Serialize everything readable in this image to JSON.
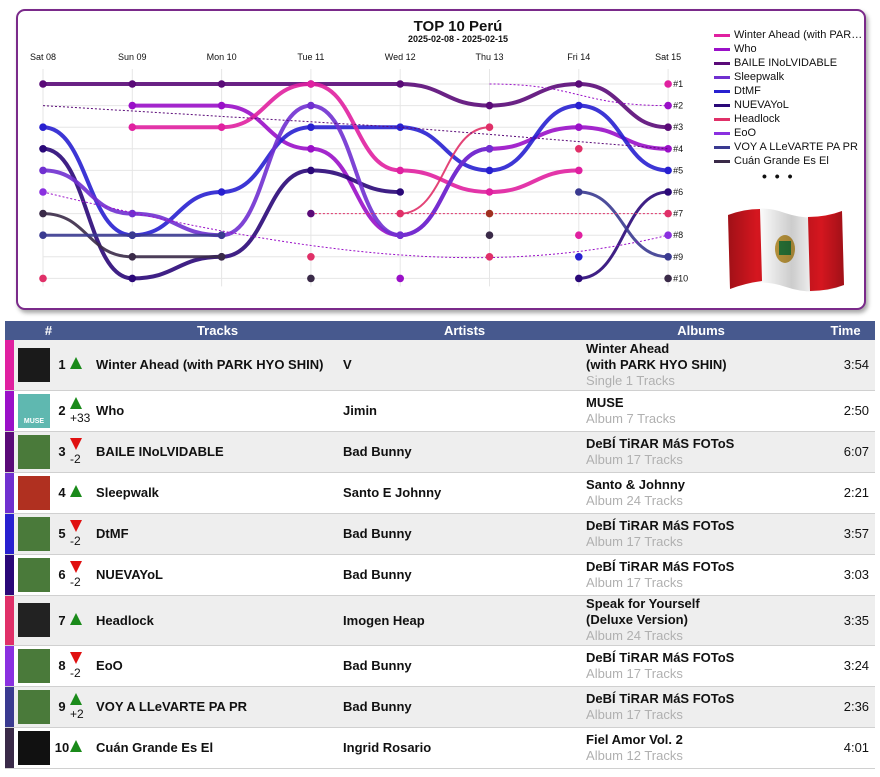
{
  "chart": {
    "title": "TOP 10 Perú",
    "date_range": "2025-02-08 - 2025-02-15",
    "days": [
      "Sat 08",
      "Sun 09",
      "Mon 10",
      "Tue 11",
      "Wed 12",
      "Thu 13",
      "Fri 14",
      "Sat 15"
    ],
    "rank_labels": [
      "#1",
      "#2",
      "#3",
      "#4",
      "#5",
      "#6",
      "#7",
      "#8",
      "#9",
      "#10"
    ],
    "legend_more": "• • •",
    "flag_name": "peru-flag"
  },
  "chart_data": {
    "type": "line",
    "x": [
      "Sat 08",
      "Sun 09",
      "Mon 10",
      "Tue 11",
      "Wed 12",
      "Thu 13",
      "Fri 14",
      "Sat 15"
    ],
    "y_axis": "rank (1 = top)",
    "series": [
      {
        "name": "Winter Ahead (with PARK HYO SHIN)",
        "color": "#e020a0",
        "ranks": [
          null,
          null,
          null,
          null,
          null,
          null,
          null,
          1
        ]
      },
      {
        "name": "Who",
        "color": "#9a10c8",
        "ranks": [
          null,
          null,
          null,
          null,
          null,
          null,
          null,
          2
        ]
      },
      {
        "name": "BAILE INoLVIDABLE",
        "color": "#5a0a78",
        "ranks": [
          1,
          1,
          1,
          1,
          1,
          1,
          1,
          3
        ]
      },
      {
        "name": "Sleepwalk",
        "color": "#7030d0",
        "ranks": [
          null,
          null,
          null,
          null,
          null,
          null,
          null,
          4
        ]
      },
      {
        "name": "DtMF",
        "color": "#2820d0",
        "ranks": [
          3,
          null,
          null,
          null,
          null,
          null,
          null,
          5
        ]
      },
      {
        "name": "NUEVAYoL",
        "color": "#2a0878",
        "ranks": [
          null,
          null,
          null,
          null,
          null,
          null,
          null,
          6
        ]
      },
      {
        "name": "Headlock",
        "color": "#e03068",
        "ranks": [
          null,
          null,
          null,
          null,
          null,
          null,
          null,
          7
        ]
      },
      {
        "name": "EoO",
        "color": "#8a30e0",
        "ranks": [
          null,
          null,
          null,
          null,
          null,
          null,
          null,
          8
        ]
      },
      {
        "name": "VOY A LLeVARTE PA PR",
        "color": "#3a3a90",
        "ranks": [
          null,
          null,
          null,
          null,
          null,
          null,
          null,
          9
        ]
      },
      {
        "name": "Cuán Grande Es El",
        "color": "#3a2a48",
        "ranks": [
          null,
          null,
          null,
          null,
          null,
          null,
          null,
          10
        ]
      }
    ]
  },
  "table": {
    "headers": {
      "rank": "#",
      "tracks": "Tracks",
      "artists": "Artists",
      "albums": "Albums",
      "time": "Time"
    },
    "rows": [
      {
        "rank": "1",
        "dir": "up",
        "change": "",
        "track": "Winter Ahead (with PARK HYO SHIN)",
        "artist": "V",
        "album_line1": "Winter Ahead",
        "album_line2": "(with PARK HYO SHIN)",
        "album_info": "Single 1 Tracks",
        "time": "3:54",
        "color": "#e020a0",
        "cover_bg": "#1a1a1a",
        "cover_text": ""
      },
      {
        "rank": "2",
        "dir": "up",
        "change": "+33",
        "track": "Who",
        "artist": "Jimin",
        "album_line1": "MUSE",
        "album_line2": "",
        "album_info": "Album 7 Tracks",
        "time": "2:50",
        "color": "#9a10c8",
        "cover_bg": "#5fb8b0",
        "cover_text": "MUSE"
      },
      {
        "rank": "3",
        "dir": "down",
        "change": "-2",
        "track": "BAILE INoLVIDABLE",
        "artist": "Bad Bunny",
        "album_line1": "DeBÍ TiRAR MáS FOToS",
        "album_line2": "",
        "album_info": "Album 17 Tracks",
        "time": "6:07",
        "color": "#5a0a78",
        "cover_bg": "#4a7a3a",
        "cover_text": ""
      },
      {
        "rank": "4",
        "dir": "up",
        "change": "",
        "track": "Sleepwalk",
        "artist": "Santo E Johnny",
        "album_line1": "Santo & Johnny",
        "album_line2": "",
        "album_info": "Album 24 Tracks",
        "time": "2:21",
        "color": "#7030d0",
        "cover_bg": "#b03020",
        "cover_text": ""
      },
      {
        "rank": "5",
        "dir": "down",
        "change": "-2",
        "track": "DtMF",
        "artist": "Bad Bunny",
        "album_line1": "DeBÍ TiRAR MáS FOToS",
        "album_line2": "",
        "album_info": "Album 17 Tracks",
        "time": "3:57",
        "color": "#2820d0",
        "cover_bg": "#4a7a3a",
        "cover_text": ""
      },
      {
        "rank": "6",
        "dir": "down",
        "change": "-2",
        "track": "NUEVAYoL",
        "artist": "Bad Bunny",
        "album_line1": "DeBÍ TiRAR MáS FOToS",
        "album_line2": "",
        "album_info": "Album 17 Tracks",
        "time": "3:03",
        "color": "#2a0878",
        "cover_bg": "#4a7a3a",
        "cover_text": ""
      },
      {
        "rank": "7",
        "dir": "up",
        "change": "",
        "track": "Headlock",
        "artist": "Imogen Heap",
        "album_line1": "Speak for Yourself",
        "album_line2": "(Deluxe Version)",
        "album_info": "Album 24 Tracks",
        "time": "3:35",
        "color": "#e03068",
        "cover_bg": "#222222",
        "cover_text": ""
      },
      {
        "rank": "8",
        "dir": "down",
        "change": "-2",
        "track": "EoO",
        "artist": "Bad Bunny",
        "album_line1": "DeBÍ TiRAR MáS FOToS",
        "album_line2": "",
        "album_info": "Album 17 Tracks",
        "time": "3:24",
        "color": "#8a30e0",
        "cover_bg": "#4a7a3a",
        "cover_text": ""
      },
      {
        "rank": "9",
        "dir": "up",
        "change": "+2",
        "track": "VOY A LLeVARTE PA PR",
        "artist": "Bad Bunny",
        "album_line1": "DeBÍ TiRAR MáS FOToS",
        "album_line2": "",
        "album_info": "Album 17 Tracks",
        "time": "2:36",
        "color": "#3a3a90",
        "cover_bg": "#4a7a3a",
        "cover_text": ""
      },
      {
        "rank": "10",
        "dir": "up",
        "change": "",
        "track": "Cuán Grande Es El",
        "artist": "Ingrid Rosario",
        "album_line1": "Fiel Amor Vol. 2",
        "album_line2": "",
        "album_info": "Album 12 Tracks",
        "time": "4:01",
        "color": "#3a2a48",
        "cover_bg": "#111111",
        "cover_text": ""
      }
    ]
  }
}
